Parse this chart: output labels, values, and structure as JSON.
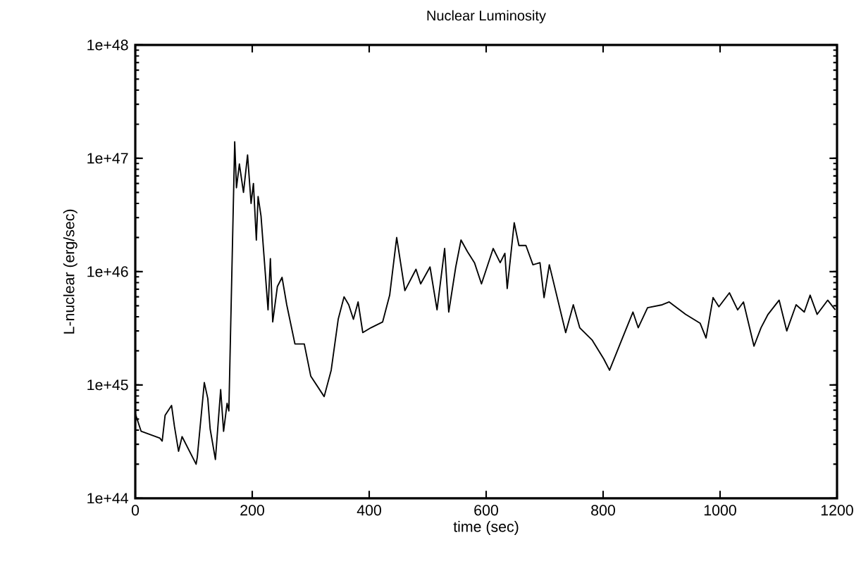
{
  "chart_data": {
    "type": "line",
    "title": "Nuclear Luminosity",
    "xlabel": "time (sec)",
    "ylabel": "L-nuclear (erg/sec)",
    "log": "y",
    "grid": false,
    "marker": "none",
    "line_style": "solid",
    "xlim": [
      0,
      1200
    ],
    "xticks": [
      0,
      200,
      400,
      600,
      800,
      1000,
      1200
    ],
    "ylim": [
      1e+44,
      1e+48
    ],
    "yticks": [
      {
        "value": 1e+44,
        "label": "1e+44"
      },
      {
        "value": 1e+45,
        "label": "1e+45"
      },
      {
        "value": 1e+46,
        "label": "1e+46"
      },
      {
        "value": 1e+47,
        "label": "1e+47"
      },
      {
        "value": 1e+48,
        "label": "1e+48"
      }
    ],
    "series": [
      {
        "color": "#000000",
        "x": [
          0,
          10,
          42,
          46,
          51,
          62,
          67,
          74,
          80,
          98,
          104,
          106,
          118,
          124,
          128,
          137,
          146,
          151,
          157,
          160,
          170,
          173,
          178,
          185,
          192,
          198,
          202,
          207,
          210,
          215,
          220,
          227,
          231,
          235,
          243,
          251,
          259,
          273,
          289,
          300,
          323,
          335,
          347,
          357,
          365,
          373,
          381,
          389,
          403,
          423,
          435,
          447,
          461,
          480,
          488,
          504,
          516,
          529,
          536,
          548,
          557,
          568,
          580,
          592,
          612,
          624,
          632,
          636,
          648,
          656,
          668,
          680,
          692,
          699,
          708,
          736,
          749,
          760,
          781,
          801,
          811,
          829,
          851,
          860,
          876,
          901,
          913,
          941,
          966,
          976,
          988,
          998,
          1016,
          1030,
          1040,
          1058,
          1070,
          1082,
          1101,
          1114,
          1130,
          1144,
          1154,
          1166,
          1184,
          1197
        ],
        "values": [
          5.6e+44,
          3.9e+44,
          3.4e+44,
          3.2e+44,
          5.4e+44,
          6.6e+44,
          4.3e+44,
          2.6e+44,
          3.5e+44,
          2.3e+44,
          2e+44,
          2.3e+44,
          1.05e+45,
          7.6e+44,
          4.1e+44,
          2.2e+44,
          9.1e+44,
          3.9e+44,
          6.9e+44,
          5.9e+44,
          1.4e+47,
          5.5e+46,
          8.9e+46,
          5e+46,
          1.07e+47,
          4e+46,
          6e+46,
          1.9e+46,
          4.6e+46,
          3.1e+46,
          1.4e+46,
          4.6e+45,
          1.3e+46,
          3.6e+45,
          7.4e+45,
          8.9e+45,
          5.1e+45,
          2.3e+45,
          2.3e+45,
          1.2e+45,
          7.9e+44,
          1.35e+45,
          3.8e+45,
          6e+45,
          5.1e+45,
          3.8e+45,
          5.4e+45,
          2.9e+45,
          3.2e+45,
          3.6e+45,
          6.2e+45,
          2e+46,
          6.8e+45,
          1.05e+46,
          7.8e+45,
          1.1e+46,
          4.6e+45,
          1.6e+46,
          4.4e+45,
          1.1e+46,
          1.9e+46,
          1.5e+46,
          1.2e+46,
          7.8e+45,
          1.6e+46,
          1.2e+46,
          1.45e+46,
          7.1e+45,
          2.7e+46,
          1.7e+46,
          1.7e+46,
          1.15e+46,
          1.2e+46,
          5.9e+45,
          1.15e+46,
          2.9e+45,
          5.1e+45,
          3.2e+45,
          2.5e+45,
          1.7e+45,
          1.35e+45,
          2.3e+45,
          4.4e+45,
          3.2e+45,
          4.8e+45,
          5.1e+45,
          5.4e+45,
          4.2e+45,
          3.5e+45,
          2.6e+45,
          5.9e+45,
          4.9e+45,
          6.5e+45,
          4.6e+45,
          5.4e+45,
          2.2e+45,
          3.2e+45,
          4.2e+45,
          5.6e+45,
          3e+45,
          5.1e+45,
          4.4e+45,
          6.2e+45,
          4.2e+45,
          5.6e+45,
          4.6e+45
        ]
      }
    ]
  }
}
